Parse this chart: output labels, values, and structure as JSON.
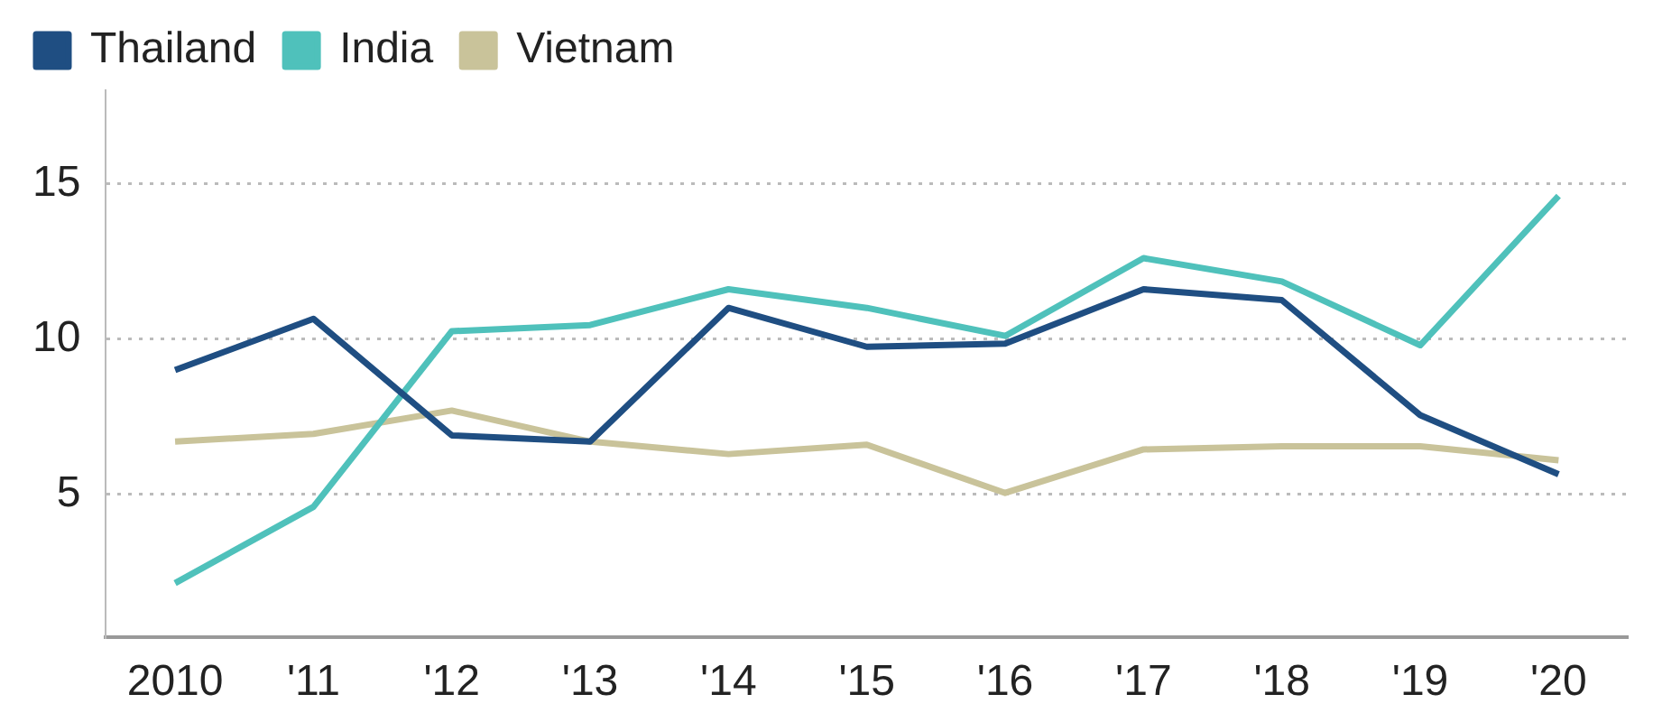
{
  "chart_data": {
    "type": "line",
    "categories": [
      "2010",
      "'11",
      "'12",
      "'13",
      "'14",
      "'15",
      "'16",
      "'17",
      "'18",
      "'19",
      "'20"
    ],
    "series": [
      {
        "name": "Thailand",
        "color": "#1f4e82",
        "values": [
          9.0,
          10.65,
          6.9,
          6.7,
          11.0,
          9.75,
          9.85,
          11.6,
          11.25,
          7.55,
          5.65
        ]
      },
      {
        "name": "India",
        "color": "#4fc1bb",
        "values": [
          2.15,
          4.6,
          10.25,
          10.45,
          11.6,
          11.0,
          10.1,
          12.6,
          11.85,
          9.8,
          14.6
        ]
      },
      {
        "name": "Vietnam",
        "color": "#c9c39a",
        "values": [
          6.7,
          6.95,
          7.7,
          6.7,
          6.3,
          6.6,
          5.05,
          6.45,
          6.55,
          6.55,
          6.1
        ]
      }
    ],
    "ylim": [
      0.4,
      18
    ],
    "yticks": [
      5,
      10,
      15
    ],
    "grid": "y",
    "legend": "top left",
    "marker": "none",
    "line_style": "solid"
  }
}
